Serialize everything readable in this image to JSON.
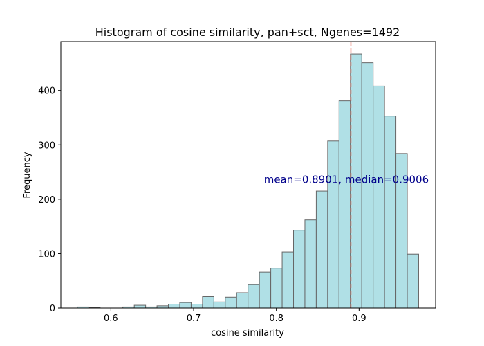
{
  "chart_data": {
    "type": "bar",
    "title": "Histogram of cosine similarity, pan+sct, Ngenes=1492",
    "xlabel": "cosine similarity",
    "ylabel": "Frequency",
    "xlim": [
      0.5395,
      0.9925
    ],
    "ylim": [
      0,
      490
    ],
    "xticks": [
      0.6,
      0.7,
      0.8,
      0.9
    ],
    "xtick_labels": [
      "0.6",
      "0.7",
      "0.8",
      "0.9"
    ],
    "yticks": [
      0,
      100,
      200,
      300,
      400
    ],
    "ytick_labels": [
      "0",
      "100",
      "200",
      "300",
      "400"
    ],
    "bin_width": 0.01375,
    "bin_edges_start": 0.5595,
    "values": [
      2,
      1,
      0,
      0,
      2,
      5,
      2,
      4,
      7,
      10,
      7,
      21,
      11,
      20,
      28,
      43,
      66,
      73,
      103,
      143,
      162,
      215,
      307,
      381,
      467,
      451,
      408,
      353,
      284,
      99
    ],
    "bar_color": "#b0e0e6",
    "edge_color": "#666666",
    "mean_line": {
      "x": 0.8901,
      "color": "#e87060",
      "style": "dashed"
    },
    "annotation": {
      "text": "mean=0.8901, median=0.9006",
      "x": 0.785,
      "y": 236,
      "color": "#00008b"
    }
  }
}
